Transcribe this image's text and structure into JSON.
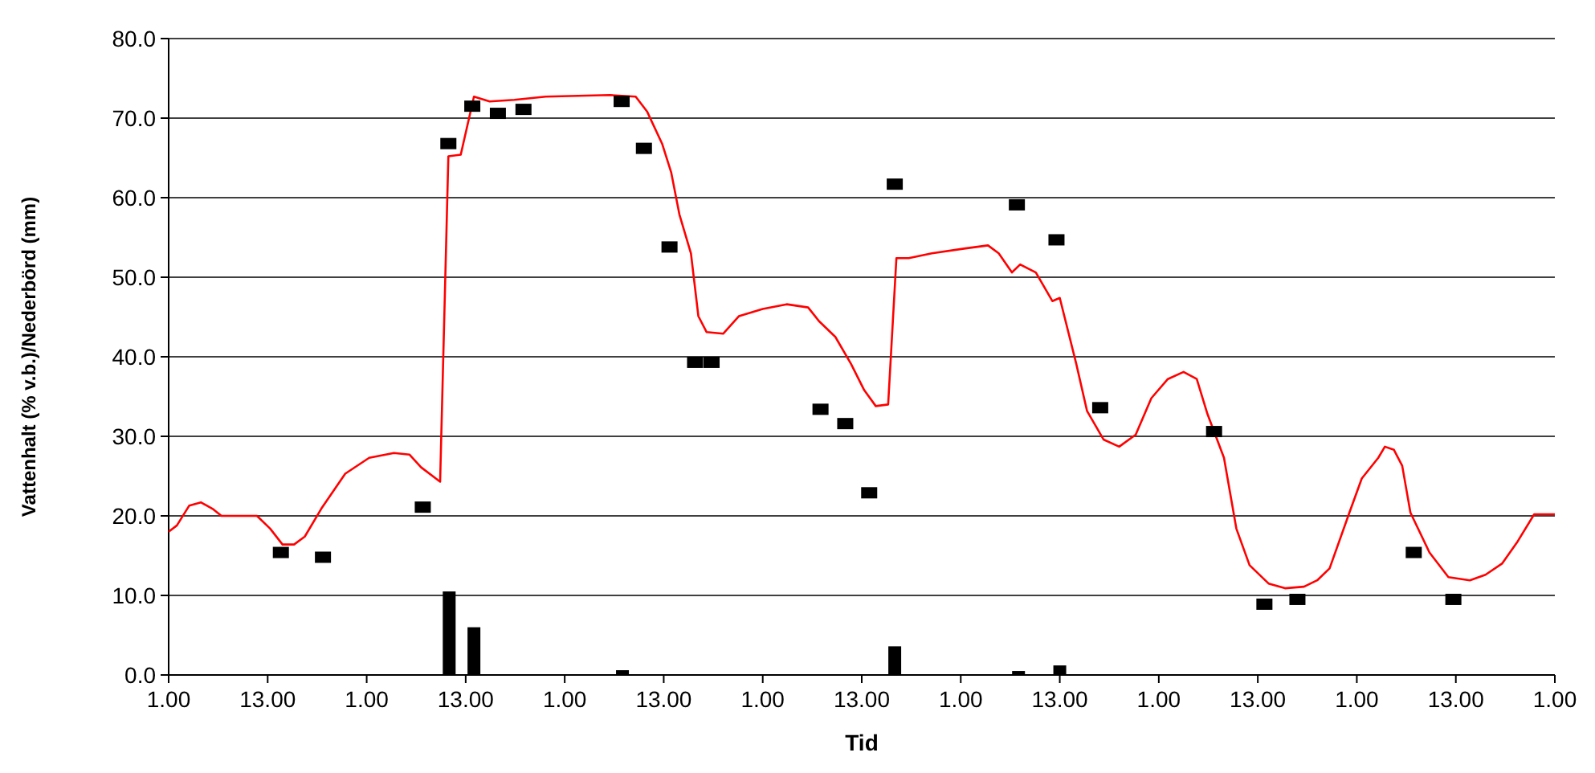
{
  "chart_data": {
    "type": "line",
    "xlabel": "Tid",
    "ylabel": "Vattenhalt (% v.b.)/Nederbörd (mm)",
    "xlim": [
      "--01-01T01:00",
      "--01-08T01:00"
    ],
    "xticks": [
      {
        "value": "--01-01T01:00",
        "label": "1.00"
      },
      {
        "value": "--01-01T13:00",
        "label": "13.00"
      },
      {
        "value": "--01-02T01:00",
        "label": "1.00"
      },
      {
        "value": "--01-02T13:00",
        "label": "13.00"
      },
      {
        "value": "--01-03T01:00",
        "label": "1.00"
      },
      {
        "value": "--01-03T13:00",
        "label": "13.00"
      },
      {
        "value": "--01-04T01:00",
        "label": "1.00"
      },
      {
        "value": "--01-04T13:00",
        "label": "13.00"
      },
      {
        "value": "--01-05T01:00",
        "label": "1.00"
      },
      {
        "value": "--01-05T13:00",
        "label": "13.00"
      },
      {
        "value": "--01-06T01:00",
        "label": "1.00"
      },
      {
        "value": "--01-06T13:00",
        "label": "13.00"
      },
      {
        "value": "--01-07T01:00",
        "label": "1.00"
      },
      {
        "value": "--01-07T13:00",
        "label": "13.00"
      },
      {
        "value": "--01-08T01:00",
        "label": "1.00"
      }
    ],
    "ylim": [
      0,
      80
    ],
    "yticks": [
      {
        "value": 0,
        "label": "0.0"
      },
      {
        "value": 10,
        "label": "10.0"
      },
      {
        "value": 20,
        "label": "20.0"
      },
      {
        "value": 30,
        "label": "30.0"
      },
      {
        "value": 40,
        "label": "40.0"
      },
      {
        "value": 50,
        "label": "50.0"
      },
      {
        "value": 60,
        "label": "60.0"
      },
      {
        "value": 70,
        "label": "70.0"
      },
      {
        "value": 80,
        "label": "80.0"
      }
    ],
    "grid": "y",
    "series": [
      {
        "type": "bar",
        "color": "#000000",
        "x": [
          "--01-02T11:00",
          "--01-02T14:00",
          "--01-03T08:00",
          "--01-04T17:00",
          "--01-05T08:00",
          "--01-05T13:00"
        ],
        "values": [
          10.5,
          6,
          0.6,
          3.6,
          0.5,
          1.2
        ]
      },
      {
        "color": "#ff0000",
        "marker": "none",
        "line_style": "solid",
        "x": [
          "--01-01T01:00",
          "--01-01T02:00",
          "--01-01T03:30",
          "--01-01T04:54",
          "--01-01T06:18",
          "--01-01T07:24",
          "--01-01T11:42",
          "--01-01T13:18",
          "--01-01T14:48",
          "--01-01T16:12",
          "--01-01T17:30",
          "--01-01T19:30",
          "--01-01T22:24",
          "--01-02T01:18",
          "--01-02T04:18",
          "--01-02T06:12",
          "--01-02T07:36",
          "--01-02T09:54",
          "--01-02T10:54",
          "--01-02T12:24",
          "--01-02T14:00",
          "--01-02T15:54",
          "--01-02T18:54",
          "--01-02T22:42",
          "--01-03T06:30",
          "--01-03T09:36",
          "--01-03T11:00",
          "--01-03T12:48",
          "--01-03T13:54",
          "--01-03T14:54",
          "--01-03T16:18",
          "--01-03T17:12",
          "--01-03T18:12",
          "--01-03T20:12",
          "--01-03T22:06",
          "--01-04T01:00",
          "--01-04T03:54",
          "--01-04T06:30",
          "--01-04T07:48",
          "--01-04T09:48",
          "--01-04T11:42",
          "--01-04T13:18",
          "--01-04T14:42",
          "--01-04T16:12",
          "--01-04T17:12",
          "--01-04T18:42",
          "--01-04T21:30",
          "--01-05T01:24",
          "--01-05T04:18",
          "--01-05T05:36",
          "--01-05T07:12",
          "--01-05T08:12",
          "--01-05T10:06",
          "--01-05T12:06",
          "--01-05T13:00",
          "--01-05T15:00",
          "--01-05T16:18",
          "--01-05T18:18",
          "--01-05T20:12",
          "--01-05T22:12",
          "--01-06T00:06",
          "--01-06T02:06",
          "--01-06T04:00",
          "--01-06T05:36",
          "--01-06T06:54",
          "--01-06T08:54",
          "--01-06T10:24",
          "--01-06T12:00",
          "--01-06T14:18",
          "--01-06T16:18",
          "--01-06T18:36",
          "--01-06T20:12",
          "--01-06T21:42",
          "--01-07T00:06",
          "--01-07T01:36",
          "--01-07T03:36",
          "--01-07T04:24",
          "--01-07T05:30",
          "--01-07T06:30",
          "--01-07T07:30",
          "--01-07T09:48",
          "--01-07T12:06",
          "--01-07T14:42",
          "--01-07T16:36",
          "--01-07T18:36",
          "--01-07T20:30",
          "--01-07T22:30",
          "--01-08T01:00"
        ],
        "values": [
          18,
          18.8,
          21.3,
          21.7,
          20.9,
          20,
          20,
          18.4,
          16.4,
          16.4,
          17.4,
          20.9,
          25.3,
          27.3,
          27.9,
          27.7,
          26.1,
          24.3,
          65.2,
          65.4,
          72.7,
          72.1,
          72.3,
          72.7,
          72.9,
          72.7,
          70.8,
          66.8,
          63.2,
          57.9,
          53,
          45.1,
          43.1,
          42.9,
          45.1,
          46,
          46.6,
          46.2,
          44.5,
          42.5,
          39.1,
          35.8,
          33.8,
          34,
          52.4,
          52.4,
          53,
          53.6,
          54,
          53,
          50.6,
          51.6,
          50.6,
          47,
          47.4,
          39.1,
          33.2,
          29.6,
          28.7,
          30.2,
          34.8,
          37.2,
          38.1,
          37.2,
          32.8,
          27.3,
          18.4,
          13.8,
          11.5,
          10.9,
          11.1,
          11.9,
          13.4,
          20.4,
          24.7,
          27.3,
          28.7,
          28.3,
          26.3,
          20.4,
          15.4,
          12.3,
          11.9,
          12.6,
          14,
          16.8,
          20.2,
          20.2
        ]
      },
      {
        "type": "scatter",
        "color": "#000000",
        "marker": "square",
        "x": [
          "--01-01T14:36",
          "--01-01T19:42",
          "--01-02T07:48",
          "--01-02T10:54",
          "--01-02T13:48",
          "--01-02T16:54",
          "--01-02T20:00",
          "--01-03T07:54",
          "--01-03T10:36",
          "--01-03T13:42",
          "--01-03T16:48",
          "--01-03T18:48",
          "--01-04T08:00",
          "--01-04T11:00",
          "--01-04T13:54",
          "--01-04T17:00",
          "--01-05T07:48",
          "--01-05T12:36",
          "--01-05T17:54",
          "--01-06T07:42",
          "--01-06T13:48",
          "--01-06T17:48",
          "--01-07T07:54",
          "--01-07T12:42"
        ],
        "values": [
          15.4,
          14.8,
          21.1,
          66.8,
          71.5,
          70.6,
          71.1,
          72.1,
          66.2,
          53.8,
          39.3,
          39.3,
          33.4,
          31.6,
          22.9,
          61.7,
          59.1,
          54.7,
          33.6,
          30.6,
          8.9,
          9.5,
          15.4,
          9.5
        ]
      }
    ]
  }
}
